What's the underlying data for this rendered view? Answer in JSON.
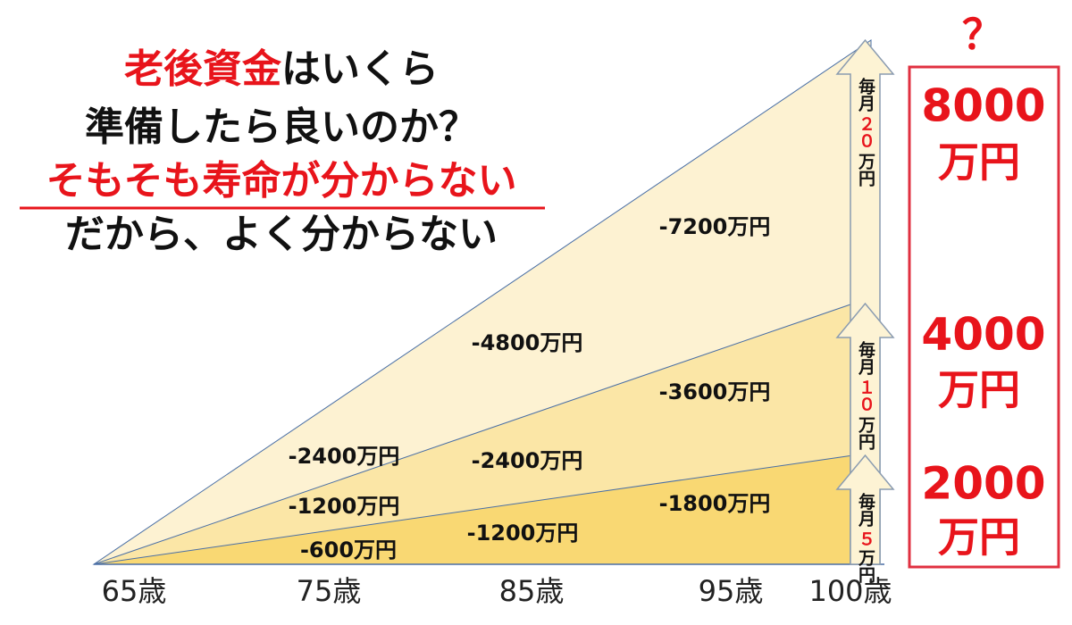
{
  "title_lines": [
    {
      "parts": [
        {
          "text": "老後資金",
          "color": "#e8141b"
        },
        {
          "text": "はいくら",
          "color": "#111111"
        }
      ],
      "underline": false
    },
    {
      "parts": [
        {
          "text": "準備したら良いのか？",
          "color": "#111111"
        }
      ],
      "underline": false
    },
    {
      "parts": [
        {
          "text": "そもそも寿命が分からない",
          "color": "#e8141b"
        }
      ],
      "underline": true
    },
    {
      "parts": [
        {
          "text": "だから、よく分からない",
          "color": "#111111"
        }
      ],
      "underline": false
    }
  ],
  "area_labels": [
    "-7200万円",
    "-4800万円",
    "-3600万円",
    "-2400万円",
    "-2400万円",
    "-1800万円",
    "-1200万円",
    "-1200万円",
    "-600万円"
  ],
  "ages": [
    "65歳",
    "75歳",
    "85歳",
    "95歳",
    "100歳"
  ],
  "arrows": [
    {
      "parts": [
        "毎月",
        "２０",
        "万円"
      ]
    },
    {
      "parts": [
        "毎月",
        "１０",
        "万円"
      ]
    },
    {
      "parts": [
        "毎月",
        "５",
        "万円"
      ]
    }
  ],
  "question": "？",
  "totals": [
    {
      "amount": "8000",
      "unit": "万円"
    },
    {
      "amount": "4000",
      "unit": "万円"
    },
    {
      "amount": "2000",
      "unit": "万円"
    }
  ]
}
